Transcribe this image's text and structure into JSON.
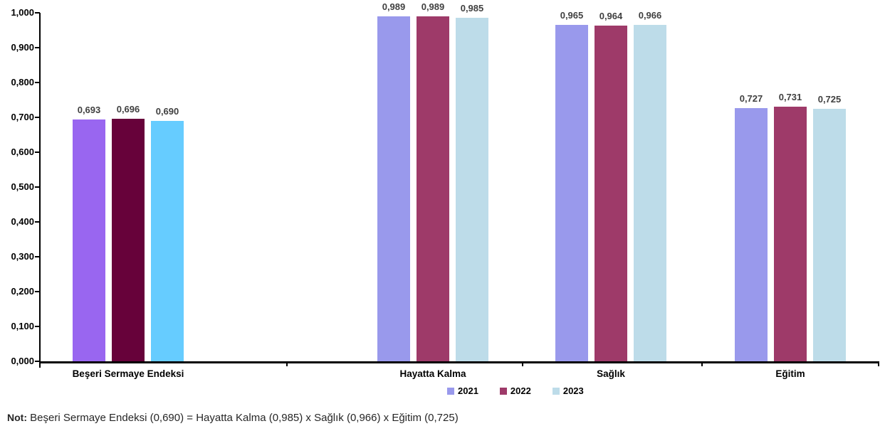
{
  "chart_data": {
    "type": "bar",
    "title": "",
    "categories": [
      "Beşeri Sermaye Endeksi",
      "Hayatta Kalma",
      "Sağlık",
      "Eğitim"
    ],
    "series": [
      {
        "name": "2021",
        "color": "#9999EC",
        "highlight_color": "#9966F0",
        "values": [
          0.693,
          0.989,
          0.965,
          0.727
        ],
        "labels": [
          "0,693",
          "0,989",
          "0,965",
          "0,727"
        ]
      },
      {
        "name": "2022",
        "color": "#9E3A69",
        "highlight_color": "#67023A",
        "values": [
          0.696,
          0.989,
          0.964,
          0.731
        ],
        "labels": [
          "0,696",
          "0,989",
          "0,964",
          "0,731"
        ]
      },
      {
        "name": "2023",
        "color": "#BDDCE9",
        "highlight_color": "#66CCFF",
        "values": [
          0.69,
          0.985,
          0.966,
          0.725
        ],
        "labels": [
          "0,690",
          "0,985",
          "0,966",
          "0,725"
        ]
      }
    ],
    "highlight_category_index": 0,
    "ylim": [
      0,
      1
    ],
    "ytick_step": 0.1,
    "ytick_labels": [
      "0,000",
      "0,100",
      "0,200",
      "0,300",
      "0,400",
      "0,500",
      "0,600",
      "0,700",
      "0,800",
      "0,900",
      "1,000"
    ],
    "grid": false,
    "legend_position": "bottom",
    "legend": [
      "2021",
      "2022",
      "2023"
    ]
  },
  "note": {
    "prefix": "Not:",
    "text": " Beşeri Sermaye Endeksi (0,690) = Hayatta Kalma (0,985) x Sağlık (0,966) x Eğitim (0,725)"
  },
  "colors": {
    "axis": "#000000",
    "value_label": "#404040",
    "background": "#FFFFFF"
  }
}
